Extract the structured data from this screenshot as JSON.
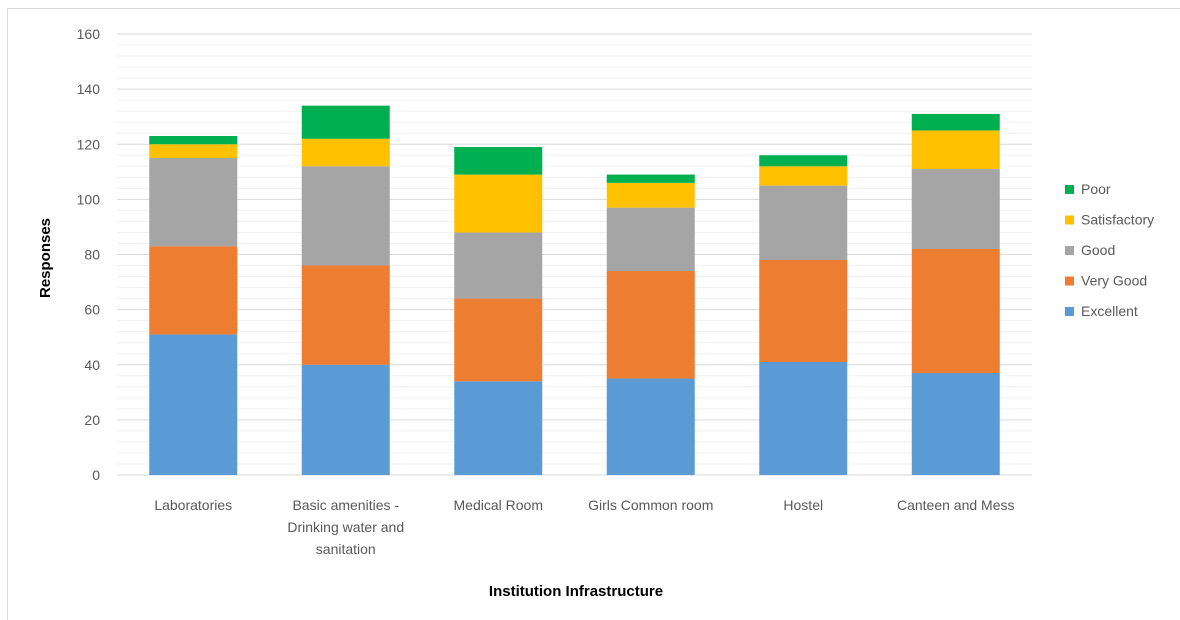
{
  "chart_data": {
    "type": "bar",
    "stacked": true,
    "title": "",
    "xlabel": "Institution Infrastructure",
    "ylabel": "Responses",
    "ylim": [
      0,
      160
    ],
    "ytick_step": 20,
    "grid": true,
    "legend_position": "right",
    "categories": [
      [
        "Laboratories"
      ],
      [
        "Basic amenities -",
        "Drinking water and",
        "sanitation"
      ],
      [
        "Medical Room"
      ],
      [
        "Girls Common room"
      ],
      [
        "Hostel"
      ],
      [
        "Canteen and Mess"
      ]
    ],
    "series": [
      {
        "name": "Excellent",
        "color": "#5b9bd5",
        "values": [
          51,
          40,
          34,
          35,
          41,
          37
        ]
      },
      {
        "name": "Very Good",
        "color": "#ed7d31",
        "values": [
          32,
          36,
          30,
          39,
          37,
          45
        ]
      },
      {
        "name": "Good",
        "color": "#a5a5a5",
        "values": [
          32,
          36,
          24,
          23,
          27,
          29
        ]
      },
      {
        "name": "Satisfactory",
        "color": "#ffc000",
        "values": [
          5,
          10,
          21,
          9,
          7,
          14
        ]
      },
      {
        "name": "Poor",
        "color": "#00b050",
        "values": [
          3,
          12,
          10,
          3,
          4,
          6
        ]
      }
    ]
  }
}
